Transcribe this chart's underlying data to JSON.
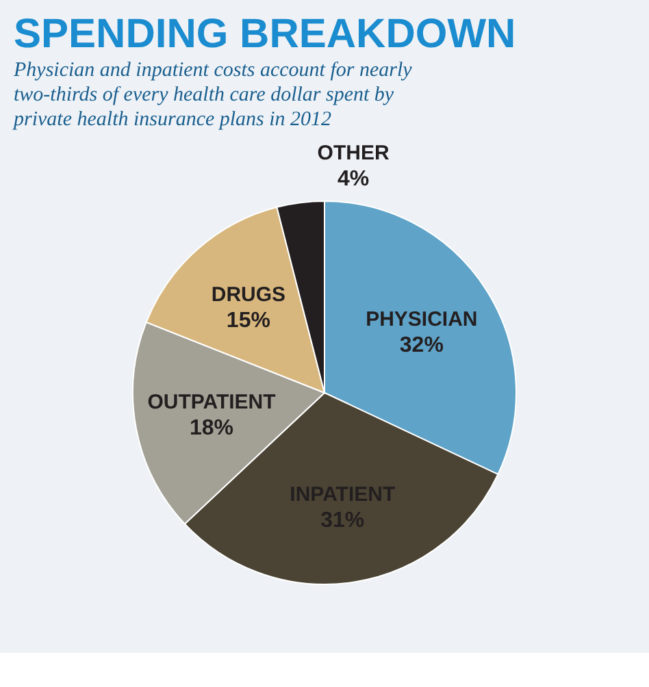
{
  "chart_data": {
    "type": "pie",
    "title": "SPENDING BREAKDOWN",
    "subtitle": "Physician and inpatient costs account for nearly two-thirds of every health care dollar spent by private health insurance plans in 2012",
    "categories": [
      "PHYSICIAN",
      "INPATIENT",
      "OUTPATIENT",
      "DRUGS",
      "OTHER"
    ],
    "values": [
      32,
      31,
      18,
      15,
      4
    ],
    "value_labels": [
      "32%",
      "31%",
      "18%",
      "15%",
      "4%"
    ],
    "colors": [
      "#5fa3c8",
      "#4b4434",
      "#a3a196",
      "#d8b77e",
      "#231f20"
    ],
    "legend": false
  }
}
